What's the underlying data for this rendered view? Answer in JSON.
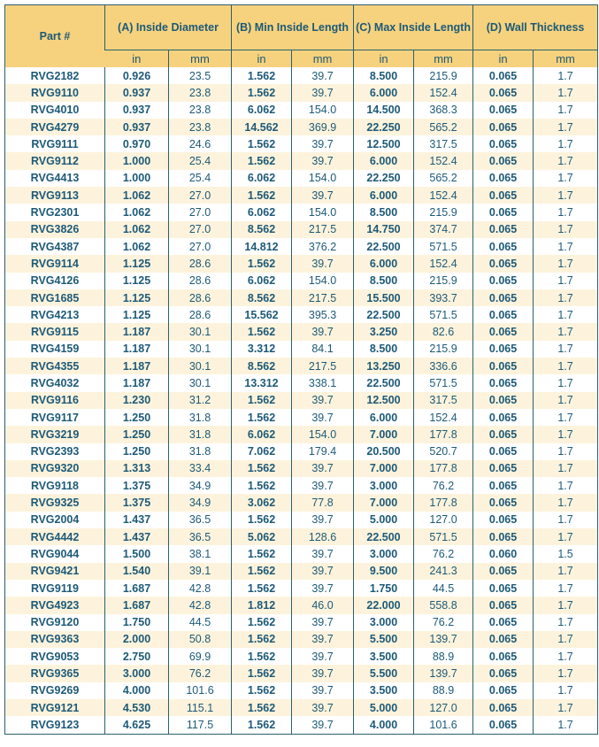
{
  "headers": {
    "part": "Part #",
    "a": "(A) Inside Diameter",
    "b": "(B) Min Inside Length",
    "c": "(C) Max Inside Length",
    "d": "(D) Wall Thickness",
    "in": "in",
    "mm": "mm"
  },
  "rows": [
    [
      "RVG2182",
      "0.926",
      "23.5",
      "1.562",
      "39.7",
      "8.500",
      "215.9",
      "0.065",
      "1.7"
    ],
    [
      "RVG9110",
      "0.937",
      "23.8",
      "1.562",
      "39.7",
      "6.000",
      "152.4",
      "0.065",
      "1.7"
    ],
    [
      "RVG4010",
      "0.937",
      "23.8",
      "6.062",
      "154.0",
      "14.500",
      "368.3",
      "0.065",
      "1.7"
    ],
    [
      "RVG4279",
      "0.937",
      "23.8",
      "14.562",
      "369.9",
      "22.250",
      "565.2",
      "0.065",
      "1.7"
    ],
    [
      "RVG9111",
      "0.970",
      "24.6",
      "1.562",
      "39.7",
      "12.500",
      "317.5",
      "0.065",
      "1.7"
    ],
    [
      "RVG9112",
      "1.000",
      "25.4",
      "1.562",
      "39.7",
      "6.000",
      "152.4",
      "0.065",
      "1.7"
    ],
    [
      "RVG4413",
      "1.000",
      "25.4",
      "6.062",
      "154.0",
      "22.250",
      "565.2",
      "0.065",
      "1.7"
    ],
    [
      "RVG9113",
      "1.062",
      "27.0",
      "1.562",
      "39.7",
      "6.000",
      "152.4",
      "0.065",
      "1.7"
    ],
    [
      "RVG2301",
      "1.062",
      "27.0",
      "6.062",
      "154.0",
      "8.500",
      "215.9",
      "0.065",
      "1.7"
    ],
    [
      "RVG3826",
      "1.062",
      "27.0",
      "8.562",
      "217.5",
      "14.750",
      "374.7",
      "0.065",
      "1.7"
    ],
    [
      "RVG4387",
      "1.062",
      "27.0",
      "14.812",
      "376.2",
      "22.500",
      "571.5",
      "0.065",
      "1.7"
    ],
    [
      "RVG9114",
      "1.125",
      "28.6",
      "1.562",
      "39.7",
      "6.000",
      "152.4",
      "0.065",
      "1.7"
    ],
    [
      "RVG4126",
      "1.125",
      "28.6",
      "6.062",
      "154.0",
      "8.500",
      "215.9",
      "0.065",
      "1.7"
    ],
    [
      "RVG1685",
      "1.125",
      "28.6",
      "8.562",
      "217.5",
      "15.500",
      "393.7",
      "0.065",
      "1.7"
    ],
    [
      "RVG4213",
      "1.125",
      "28.6",
      "15.562",
      "395.3",
      "22.500",
      "571.5",
      "0.065",
      "1.7"
    ],
    [
      "RVG9115",
      "1.187",
      "30.1",
      "1.562",
      "39.7",
      "3.250",
      "82.6",
      "0.065",
      "1.7"
    ],
    [
      "RVG4159",
      "1.187",
      "30.1",
      "3.312",
      "84.1",
      "8.500",
      "215.9",
      "0.065",
      "1.7"
    ],
    [
      "RVG4355",
      "1.187",
      "30.1",
      "8.562",
      "217.5",
      "13.250",
      "336.6",
      "0.065",
      "1.7"
    ],
    [
      "RVG4032",
      "1.187",
      "30.1",
      "13.312",
      "338.1",
      "22.500",
      "571.5",
      "0.065",
      "1.7"
    ],
    [
      "RVG9116",
      "1.230",
      "31.2",
      "1.562",
      "39.7",
      "12.500",
      "317.5",
      "0.065",
      "1.7"
    ],
    [
      "RVG9117",
      "1.250",
      "31.8",
      "1.562",
      "39.7",
      "6.000",
      "152.4",
      "0.065",
      "1.7"
    ],
    [
      "RVG3219",
      "1.250",
      "31.8",
      "6.062",
      "154.0",
      "7.000",
      "177.8",
      "0.065",
      "1.7"
    ],
    [
      "RVG2393",
      "1.250",
      "31.8",
      "7.062",
      "179.4",
      "20.500",
      "520.7",
      "0.065",
      "1.7"
    ],
    [
      "RVG9320",
      "1.313",
      "33.4",
      "1.562",
      "39.7",
      "7.000",
      "177.8",
      "0.065",
      "1.7"
    ],
    [
      "RVG9118",
      "1.375",
      "34.9",
      "1.562",
      "39.7",
      "3.000",
      "76.2",
      "0.065",
      "1.7"
    ],
    [
      "RVG9325",
      "1.375",
      "34.9",
      "3.062",
      "77.8",
      "7.000",
      "177.8",
      "0.065",
      "1.7"
    ],
    [
      "RVG2004",
      "1.437",
      "36.5",
      "1.562",
      "39.7",
      "5.000",
      "127.0",
      "0.065",
      "1.7"
    ],
    [
      "RVG4442",
      "1.437",
      "36.5",
      "5.062",
      "128.6",
      "22.500",
      "571.5",
      "0.065",
      "1.7"
    ],
    [
      "RVG9044",
      "1.500",
      "38.1",
      "1.562",
      "39.7",
      "3.000",
      "76.2",
      "0.060",
      "1.5"
    ],
    [
      "RVG9421",
      "1.540",
      "39.1",
      "1.562",
      "39.7",
      "9.500",
      "241.3",
      "0.065",
      "1.7"
    ],
    [
      "RVG9119",
      "1.687",
      "42.8",
      "1.562",
      "39.7",
      "1.750",
      "44.5",
      "0.065",
      "1.7"
    ],
    [
      "RVG4923",
      "1.687",
      "42.8",
      "1.812",
      "46.0",
      "22.000",
      "558.8",
      "0.065",
      "1.7"
    ],
    [
      "RVG9120",
      "1.750",
      "44.5",
      "1.562",
      "39.7",
      "3.000",
      "76.2",
      "0.065",
      "1.7"
    ],
    [
      "RVG9363",
      "2.000",
      "50.8",
      "1.562",
      "39.7",
      "5.500",
      "139.7",
      "0.065",
      "1.7"
    ],
    [
      "RVG9053",
      "2.750",
      "69.9",
      "1.562",
      "39.7",
      "3.500",
      "88.9",
      "0.065",
      "1.7"
    ],
    [
      "RVG9365",
      "3.000",
      "76.2",
      "1.562",
      "39.7",
      "5.500",
      "139.7",
      "0.065",
      "1.7"
    ],
    [
      "RVG9269",
      "4.000",
      "101.6",
      "1.562",
      "39.7",
      "3.500",
      "88.9",
      "0.065",
      "1.7"
    ],
    [
      "RVG9121",
      "4.530",
      "115.1",
      "1.562",
      "39.7",
      "5.000",
      "127.0",
      "0.065",
      "1.7"
    ],
    [
      "RVG9123",
      "4.625",
      "117.5",
      "1.562",
      "39.7",
      "4.000",
      "101.6",
      "0.065",
      "1.7"
    ]
  ]
}
